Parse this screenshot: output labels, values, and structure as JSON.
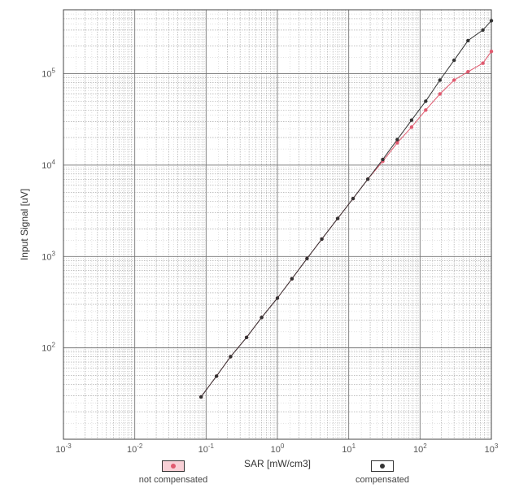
{
  "chart_data": {
    "type": "line",
    "xscale": "log",
    "yscale": "log",
    "xlim": [
      0.001,
      1000
    ],
    "ylim": [
      10,
      500000
    ],
    "xlabel": "SAR [mW/cm3]",
    "ylabel": "Input Signal [uV]",
    "grid": true,
    "legend_position": "bottom",
    "x_ticks": [
      {
        "base": "10",
        "exp": "-3",
        "value": 0.001
      },
      {
        "base": "10",
        "exp": "-2",
        "value": 0.01
      },
      {
        "base": "10",
        "exp": "-1",
        "value": 0.1
      },
      {
        "base": "10",
        "exp": "0",
        "value": 1
      },
      {
        "base": "10",
        "exp": "1",
        "value": 10
      },
      {
        "base": "10",
        "exp": "2",
        "value": 100
      },
      {
        "base": "10",
        "exp": "3",
        "value": 1000
      }
    ],
    "y_ticks": [
      {
        "base": "10",
        "exp": "2",
        "value": 100
      },
      {
        "base": "10",
        "exp": "3",
        "value": 1000
      },
      {
        "base": "10",
        "exp": "4",
        "value": 10000
      },
      {
        "base": "10",
        "exp": "5",
        "value": 100000
      }
    ],
    "series": [
      {
        "name": "not compensated",
        "color": "#e05a6f",
        "x": [
          0.085,
          0.14,
          0.22,
          0.37,
          0.6,
          1.0,
          1.6,
          2.6,
          4.2,
          7.0,
          11.5,
          18.5,
          30,
          48,
          76,
          120,
          190,
          300,
          470,
          760,
          1000
        ],
        "y": [
          29,
          49,
          80,
          130,
          215,
          350,
          570,
          950,
          1550,
          2600,
          4300,
          7000,
          11000,
          17500,
          26000,
          40000,
          60000,
          85000,
          105000,
          130000,
          175000
        ]
      },
      {
        "name": "compensated",
        "color": "#333333",
        "x": [
          0.085,
          0.14,
          0.22,
          0.37,
          0.6,
          1.0,
          1.6,
          2.6,
          4.2,
          7.0,
          11.5,
          18.5,
          30,
          48,
          76,
          120,
          190,
          300,
          470,
          760,
          1000
        ],
        "y": [
          29,
          49,
          80,
          130,
          215,
          350,
          570,
          950,
          1550,
          2600,
          4300,
          7000,
          11500,
          19000,
          31000,
          50000,
          85000,
          140000,
          230000,
          300000,
          380000
        ]
      }
    ]
  },
  "legend": {
    "not_compensated_label": "not compensated",
    "compensated_label": "compensated"
  }
}
